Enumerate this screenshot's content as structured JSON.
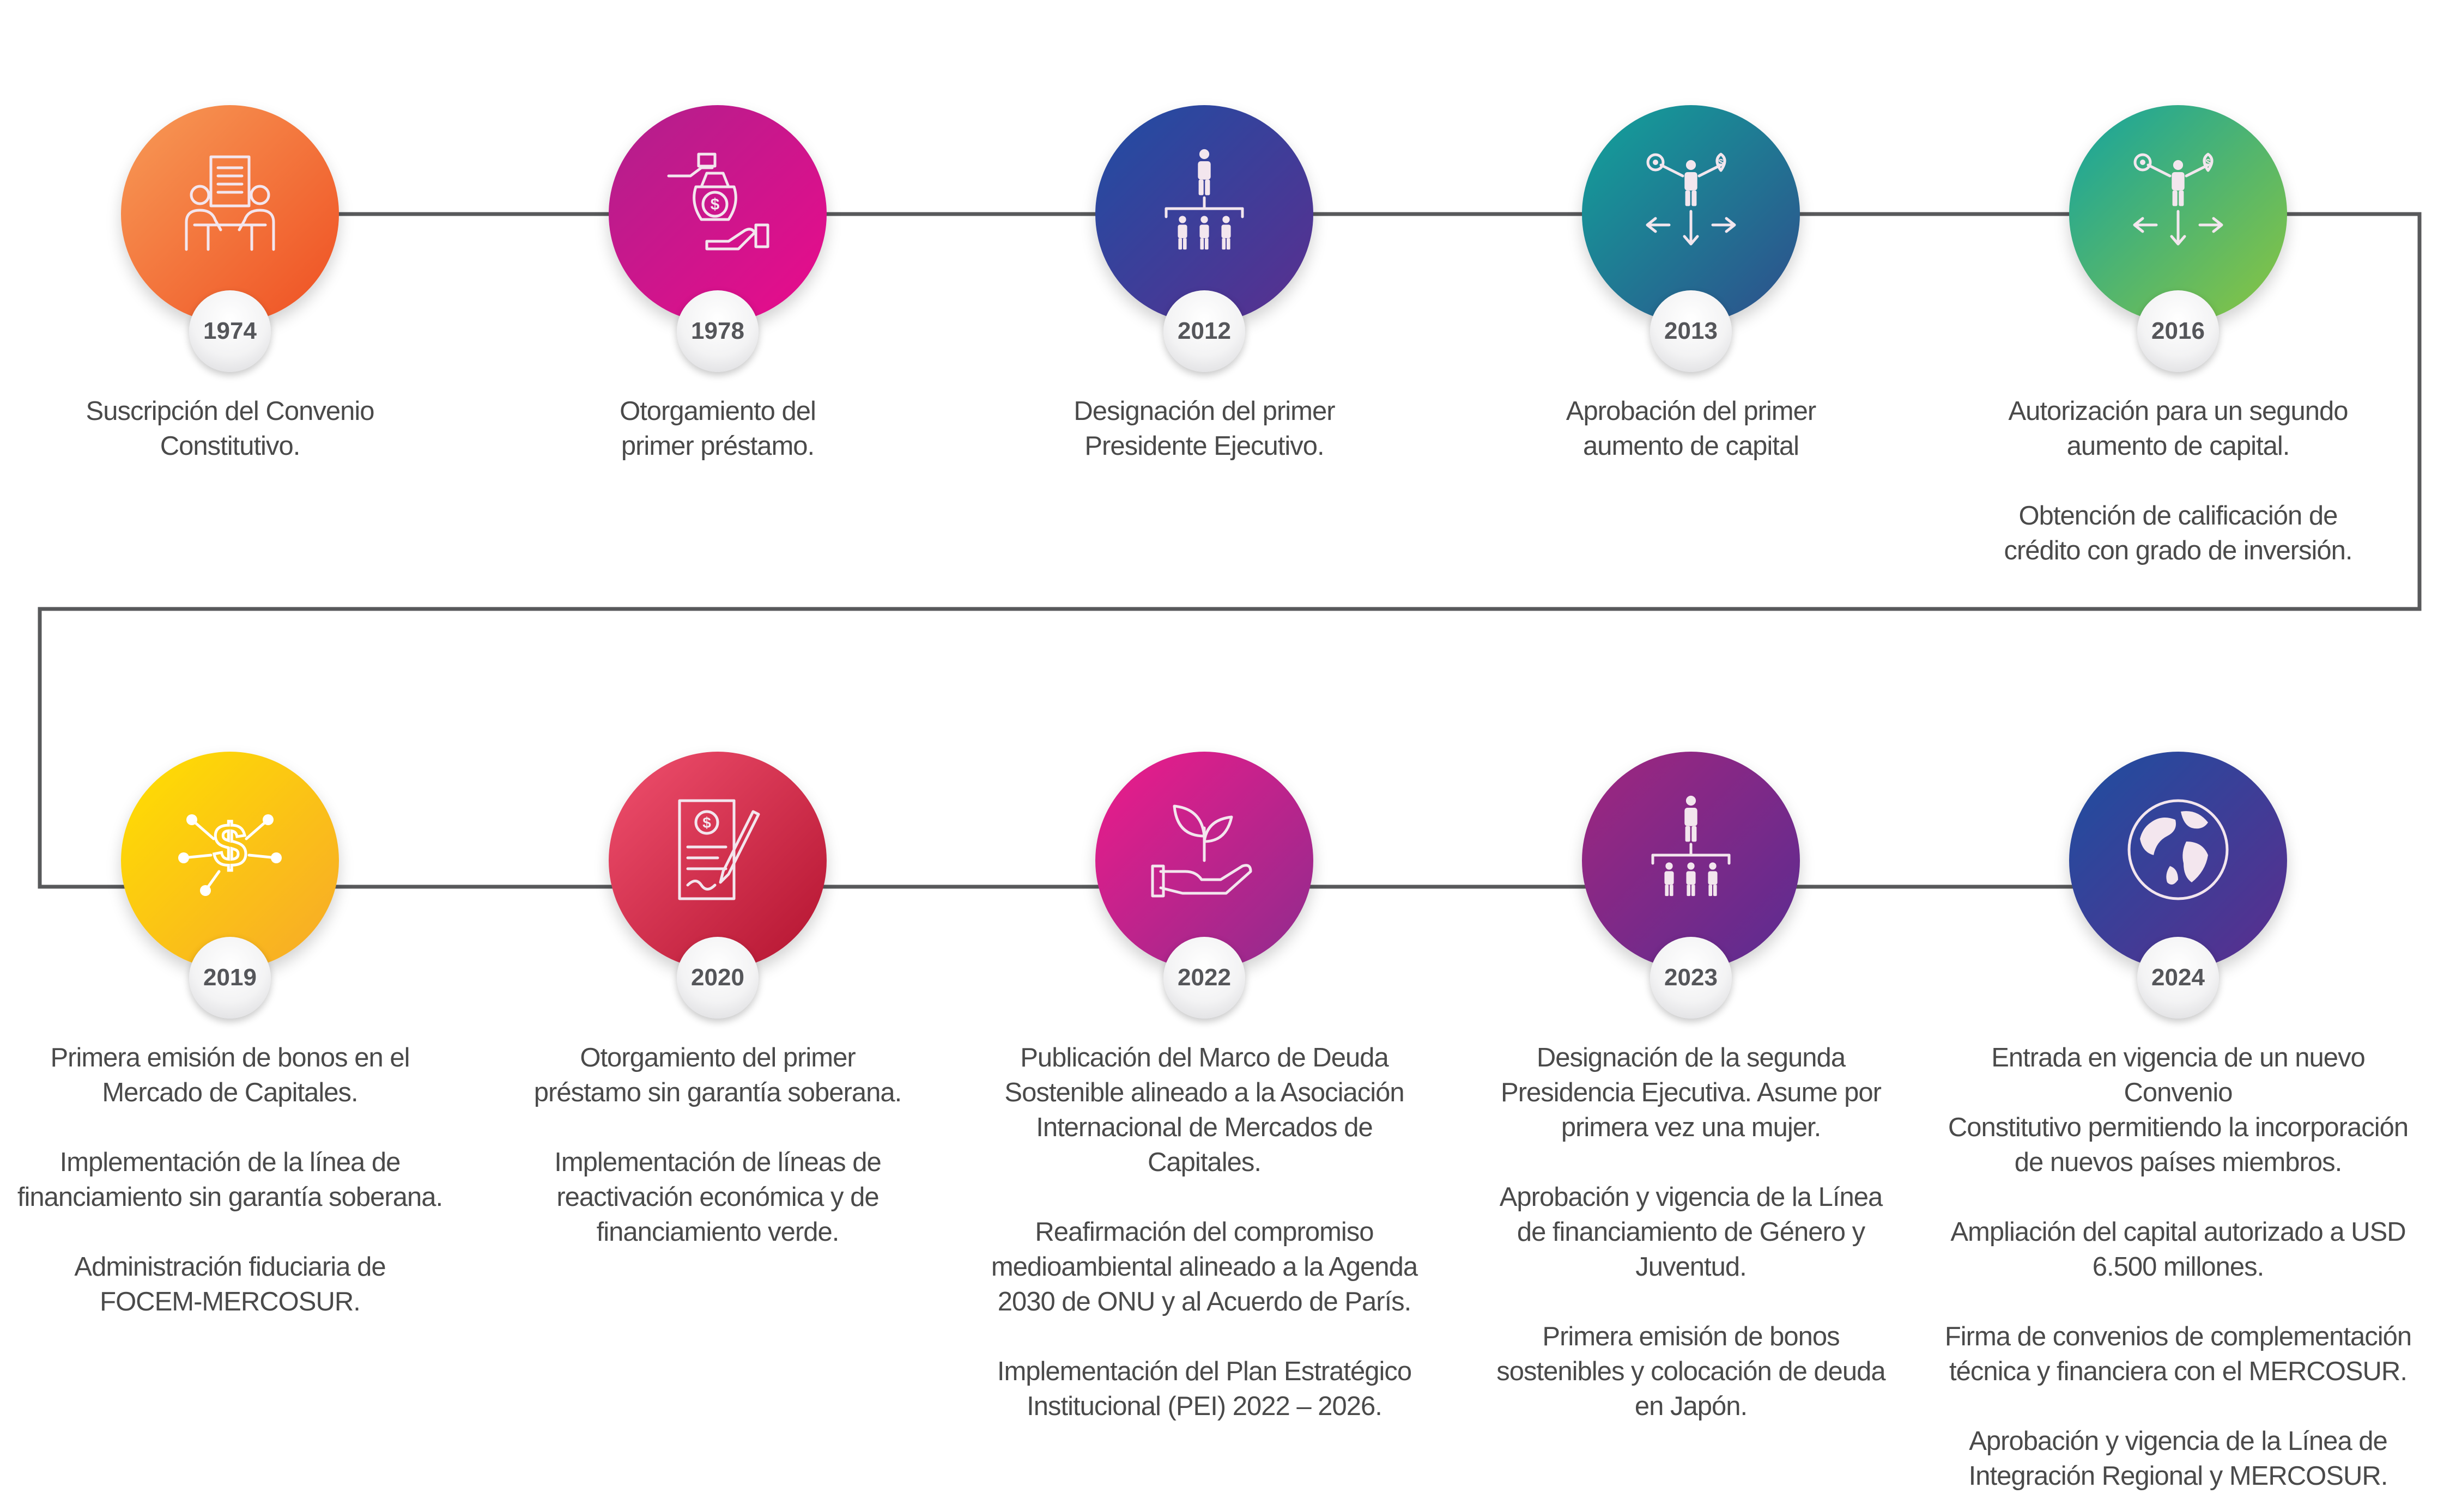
{
  "colors": {
    "line": "#58595b",
    "text": "#4a4a4a"
  },
  "milestones": [
    {
      "year": "1974",
      "icon": "meeting-document-icon",
      "gradient": [
        "#f79b57",
        "#ef4f22"
      ],
      "paragraphs": [
        "Suscripción del Convenio\nConstitutivo."
      ]
    },
    {
      "year": "1978",
      "icon": "loan-money-hand-icon",
      "gradient": [
        "#b0208c",
        "#ea0b8c"
      ],
      "paragraphs": [
        "Otorgamiento del\nprimer préstamo."
      ]
    },
    {
      "year": "2012",
      "icon": "executive-hierarchy-icon",
      "gradient": [
        "#1f4ea3",
        "#5b2e8f"
      ],
      "paragraphs": [
        "Designación del primer\nPresidente Ejecutivo."
      ]
    },
    {
      "year": "2013",
      "icon": "capital-decision-icon",
      "gradient": [
        "#12a39a",
        "#2e4d8c"
      ],
      "paragraphs": [
        "Aprobación del primer\naumento de capital"
      ]
    },
    {
      "year": "2016",
      "icon": "capital-decision-icon",
      "gradient": [
        "#14a3a0",
        "#8cc63f"
      ],
      "paragraphs": [
        "Autorización para un segundo\naumento de capital.",
        "Obtención de calificación de\ncrédito con grado de inversión."
      ]
    },
    {
      "year": "2019",
      "icon": "dollar-network-icon",
      "gradient": [
        "#ffe000",
        "#f7a82a"
      ],
      "paragraphs": [
        "Primera emisión de bonos en el\nMercado de Capitales.",
        "Implementación de la línea de\nfinanciamiento sin garantía soberana.",
        "Administración fiduciaria de\nFOCEM-MERCOSUR."
      ]
    },
    {
      "year": "2020",
      "icon": "signed-contract-icon",
      "gradient": [
        "#f0506e",
        "#b3132f"
      ],
      "paragraphs": [
        "Otorgamiento del primer\npréstamo sin garantía soberana.",
        "Implementación de líneas de\nreactivación económica y de\nfinanciamiento verde."
      ]
    },
    {
      "year": "2022",
      "icon": "plant-hand-icon",
      "gradient": [
        "#ee1b8a",
        "#8e2c8e"
      ],
      "paragraphs": [
        "Publicación del Marco de Deuda\nSostenible alineado a la Asociación\nInternacional de Mercados de\nCapitales.",
        "Reafirmación del compromiso\nmedioambiental alineado a la Agenda\n2030 de ONU y al Acuerdo de París.",
        "Implementación del Plan Estratégico\nInstitucional (PEI) 2022 – 2026."
      ]
    },
    {
      "year": "2023",
      "icon": "executive-hierarchy-icon",
      "gradient": [
        "#a0267f",
        "#5a2c91"
      ],
      "paragraphs": [
        "Designación de la segunda\nPresidencia Ejecutiva. Asume por\nprimera vez una mujer.",
        "Aprobación y vigencia de la Línea\nde financiamiento de Género y\nJuventud.",
        "Primera emisión de bonos\nsostenibles y colocación de deuda\nen Japón."
      ]
    },
    {
      "year": "2024",
      "icon": "globe-icon",
      "gradient": [
        "#1d4fa0",
        "#5c2d8e"
      ],
      "paragraphs": [
        "Entrada en vigencia de un nuevo Convenio\nConstitutivo permitiendo la incorporación\nde nuevos países miembros.",
        "Ampliación del capital autorizado a USD\n6.500 millones.",
        "Firma de convenios de complementación\ntécnica y financiera con el MERCOSUR.",
        "Aprobación y vigencia de la Línea  de\nIntegración  Regional y MERCOSUR."
      ]
    }
  ]
}
